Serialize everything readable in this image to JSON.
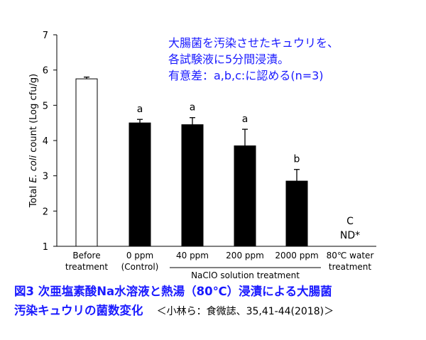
{
  "chart_data": {
    "type": "bar",
    "ylabel_prefix": "Total ",
    "ylabel_italic": "E. coli",
    "ylabel_suffix": " count (Log cfu/g)",
    "ylim": [
      1,
      7
    ],
    "yticks": [
      "1",
      "2",
      "3",
      "4",
      "5",
      "6",
      "7"
    ],
    "categories": [
      [
        "Before",
        "treatment"
      ],
      [
        "0 ppm",
        "(Control)"
      ],
      [
        "40 ppm"
      ],
      [
        "200 ppm"
      ],
      [
        "2000 ppm"
      ],
      [
        "80℃ water",
        "treatment"
      ]
    ],
    "values": [
      5.75,
      4.5,
      4.45,
      3.85,
      2.85,
      null
    ],
    "errors": [
      0.05,
      0.1,
      0.2,
      0.47,
      0.33,
      null
    ],
    "fills": [
      "#ffffff",
      "#000000",
      "#000000",
      "#000000",
      "#000000",
      null
    ],
    "significance": [
      "",
      "a",
      "a",
      "a",
      "b",
      "C"
    ],
    "nd_label": "ND*",
    "group_label": "NaClO solution treatment",
    "group_members": [
      2,
      3,
      4
    ],
    "grid": false,
    "annotation_lines": [
      "大腸菌を汚染させたキュウリを、",
      "各試験液に5分間浸漬。",
      "有意差：a,b,c:に認める(n=3)"
    ]
  },
  "caption": {
    "line1": "図3 次亜塩素酸Na水溶液と熱湯（80℃）浸漬による大腸菌",
    "line2_main": "汚染キュウリの菌数変化",
    "line2_ref": "＜小林ら：食微誌、35,41-44(2018)＞"
  },
  "colors": {
    "axis": "#000000",
    "annotation": "#1a1aff",
    "caption": "#1a1aff"
  }
}
